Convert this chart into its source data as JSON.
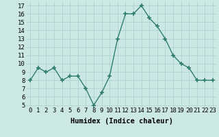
{
  "x": [
    0,
    1,
    2,
    3,
    4,
    5,
    6,
    7,
    8,
    9,
    10,
    11,
    12,
    13,
    14,
    15,
    16,
    17,
    18,
    19,
    20,
    21,
    22,
    23
  ],
  "y": [
    8.0,
    9.5,
    9.0,
    9.5,
    8.0,
    8.5,
    8.5,
    7.0,
    5.0,
    6.5,
    8.5,
    13.0,
    16.0,
    16.0,
    17.0,
    15.5,
    14.5,
    13.0,
    11.0,
    10.0,
    9.5,
    8.0,
    8.0,
    8.0
  ],
  "xlabel": "Humidex (Indice chaleur)",
  "ylim": [
    4.8,
    17.5
  ],
  "yticks": [
    5,
    6,
    7,
    8,
    9,
    10,
    11,
    12,
    13,
    14,
    15,
    16,
    17
  ],
  "xticks": [
    0,
    1,
    2,
    3,
    4,
    5,
    6,
    7,
    8,
    9,
    10,
    11,
    12,
    13,
    14,
    15,
    16,
    17,
    18,
    19,
    20,
    21,
    22,
    23
  ],
  "line_color": "#2e7d6e",
  "marker": "+",
  "marker_size": 4,
  "bg_color": "#cce8e4",
  "grid_color": "#aacfcb",
  "tick_label_fontsize": 6.5,
  "xlabel_fontsize": 7.5,
  "line_width": 1.0
}
